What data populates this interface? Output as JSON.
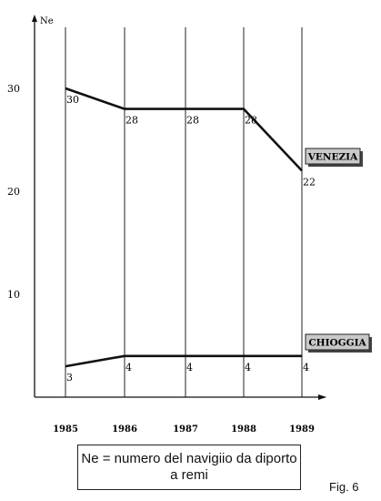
{
  "chart_data": {
    "type": "line",
    "ylabel": "Ne",
    "xlabel": "",
    "x": [
      "1985",
      "1986",
      "1987",
      "1988",
      "1989"
    ],
    "yticks": [
      "10",
      "20",
      "30"
    ],
    "ylim": [
      0,
      37
    ],
    "grid": "vertical",
    "series": [
      {
        "name": "VENEZIA",
        "values": [
          30,
          28,
          28,
          28,
          22
        ],
        "labels": [
          "30",
          "28",
          "28",
          "28",
          "22"
        ]
      },
      {
        "name": "CHIOGGIA",
        "values": [
          3,
          4,
          4,
          4,
          4
        ],
        "labels": [
          "3",
          "4",
          "4",
          "4",
          "4"
        ]
      }
    ]
  },
  "caption": {
    "line1": "Ne = numero del navigiio da diporto",
    "line2": "a remi"
  },
  "figure_label": "Fig. 6"
}
